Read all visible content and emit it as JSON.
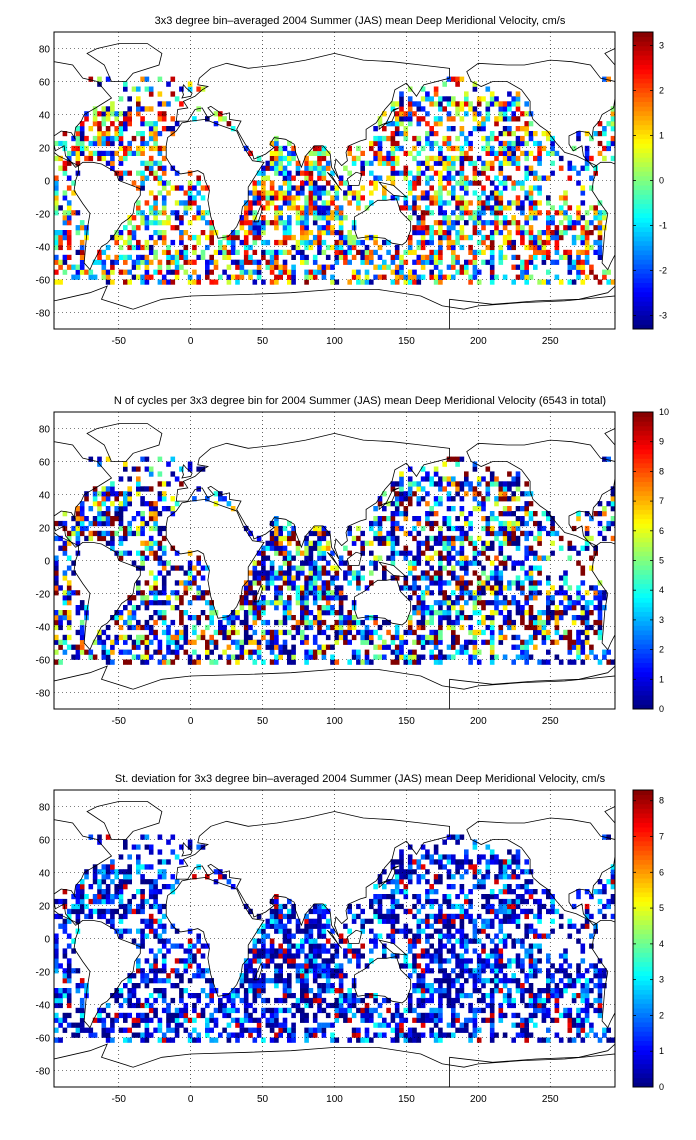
{
  "panels": [
    {
      "title": "3x3 degree bin–averaged 2004 Summer (JAS) mean Deep Meridional Velocity, cm/s",
      "x_ticks": [
        "-50",
        "0",
        "50",
        "100",
        "150",
        "200",
        "250"
      ],
      "y_ticks": [
        "80",
        "60",
        "40",
        "20",
        "0",
        "-20",
        "-40",
        "-60",
        "-80"
      ],
      "colorbar_ticks": [
        "3",
        "2",
        "1",
        "0",
        "-1",
        "-2",
        "-3"
      ],
      "field": "meridional-velocity",
      "value_range": [
        -3.3,
        3.3
      ]
    },
    {
      "title": "N of cycles per 3x3 degree bin for 2004 Summer (JAS) mean Deep Meridional Velocity (6543 in total)",
      "x_ticks": [
        "-50",
        "0",
        "50",
        "100",
        "150",
        "200",
        "250"
      ],
      "y_ticks": [
        "80",
        "60",
        "40",
        "20",
        "0",
        "-20",
        "-40",
        "-60",
        "-80"
      ],
      "colorbar_ticks": [
        "10",
        "9",
        "8",
        "7",
        "6",
        "5",
        "4",
        "3",
        "2",
        "1",
        "0"
      ],
      "field": "cycle-count",
      "value_range": [
        0,
        10
      ]
    },
    {
      "title": "St. deviation for 3x3 degree bin–averaged 2004 Summer (JAS) mean Deep Meridional Velocity, cm/s",
      "x_ticks": [
        "-50",
        "0",
        "50",
        "100",
        "150",
        "200",
        "250"
      ],
      "y_ticks": [
        "80",
        "60",
        "40",
        "20",
        "0",
        "-20",
        "-40",
        "-60",
        "-80"
      ],
      "colorbar_ticks": [
        "8",
        "7",
        "6",
        "5",
        "4",
        "3",
        "2",
        "1",
        "0"
      ],
      "field": "standard-deviation",
      "value_range": [
        0,
        8.3
      ]
    }
  ],
  "colormap": "jet",
  "chart_data": [
    {
      "type": "heatmap",
      "title": "3x3 degree bin–averaged 2004 Summer (JAS) mean Deep Meridional Velocity, cm/s",
      "xlim": [
        -95,
        295
      ],
      "ylim": [
        -90,
        90
      ],
      "colorbar_range": [
        -3.3,
        3.3
      ],
      "grid": true
    },
    {
      "type": "heatmap",
      "title": "N of cycles per 3x3 degree bin for 2004 Summer (JAS) mean Deep Meridional Velocity (6543 in total)",
      "xlim": [
        -95,
        295
      ],
      "ylim": [
        -90,
        90
      ],
      "colorbar_range": [
        0,
        10
      ],
      "grid": true
    },
    {
      "type": "heatmap",
      "title": "St. deviation for 3x3 degree bin–averaged 2004 Summer (JAS) mean Deep Meridional Velocity, cm/s",
      "xlim": [
        -95,
        295
      ],
      "ylim": [
        -90,
        90
      ],
      "colorbar_range": [
        0,
        8.3
      ],
      "grid": true
    }
  ]
}
